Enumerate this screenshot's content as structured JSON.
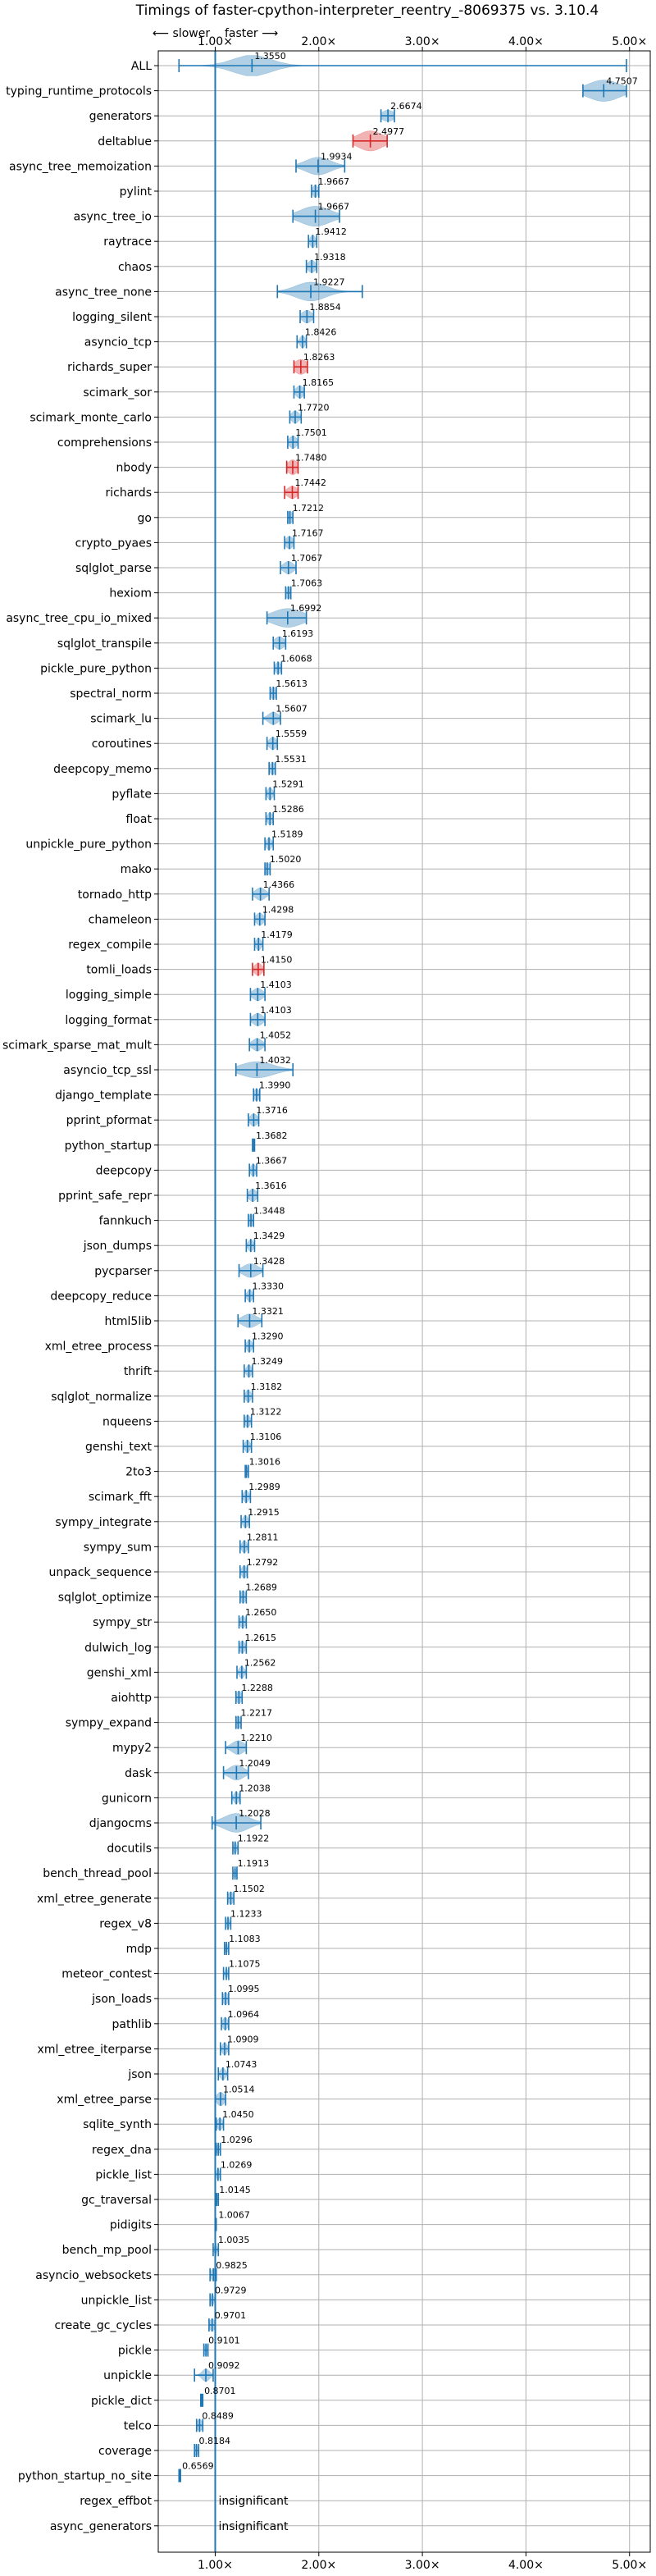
{
  "chart_data": {
    "type": "violin",
    "title": "Timings of faster-cpython-interpreter_reentry_-8069375 vs. 3.10.4",
    "axis_annotation": {
      "slower": "⟵ slower",
      "faster": "faster ⟶"
    },
    "x_ticks": [
      {
        "value": 1,
        "label": "1.00×"
      },
      {
        "value": 2,
        "label": "2.00×"
      },
      {
        "value": 3,
        "label": "3.00×"
      },
      {
        "value": 4,
        "label": "4.00×"
      },
      {
        "value": 5,
        "label": "5.00×"
      }
    ],
    "xlim": [
      0.45,
      5.2
    ],
    "reference_line": 1.0,
    "grid": true,
    "colors": {
      "violin": "#1f77b4",
      "highlight": "#d62728",
      "grid": "#b0b0b0"
    },
    "benchmarks": [
      {
        "name": "ALL",
        "value": 1.355,
        "label": "1.3550",
        "min": 0.65,
        "max": 4.97,
        "spread": 0.15,
        "width": 0.85,
        "style": "all"
      },
      {
        "name": "typing_runtime_protocols",
        "value": 4.7507,
        "label": "4.7507",
        "min": 4.55,
        "max": 4.97,
        "spread": 0.13,
        "width": 0.85
      },
      {
        "name": "generators",
        "value": 2.6674,
        "label": "2.6674",
        "min": 2.6,
        "max": 2.73,
        "spread": 0.05,
        "width": 0.45
      },
      {
        "name": "deltablue",
        "value": 2.4977,
        "label": "2.4977",
        "min": 2.33,
        "max": 2.66,
        "spread": 0.1,
        "width": 0.8,
        "color": "red"
      },
      {
        "name": "async_tree_memoization",
        "value": 1.9934,
        "label": "1.9934",
        "min": 1.78,
        "max": 2.25,
        "spread": 0.1,
        "width": 0.7
      },
      {
        "name": "pylint",
        "value": 1.9667,
        "label": "1.9667",
        "min": 1.93,
        "max": 2.0,
        "spread": 0.02,
        "width": 0.5
      },
      {
        "name": "async_tree_io",
        "value": 1.9667,
        "label": "1.9667",
        "min": 1.75,
        "max": 2.2,
        "spread": 0.12,
        "width": 0.8
      },
      {
        "name": "raytrace",
        "value": 1.9412,
        "label": "1.9412",
        "min": 1.9,
        "max": 1.98,
        "spread": 0.02,
        "width": 0.5
      },
      {
        "name": "chaos",
        "value": 1.9318,
        "label": "1.9318",
        "min": 1.88,
        "max": 1.98,
        "spread": 0.03,
        "width": 0.5
      },
      {
        "name": "async_tree_none",
        "value": 1.9227,
        "label": "1.9227",
        "min": 1.6,
        "max": 2.42,
        "spread": 0.12,
        "width": 0.75
      },
      {
        "name": "logging_silent",
        "value": 1.8854,
        "label": "1.8854",
        "min": 1.82,
        "max": 1.95,
        "spread": 0.04,
        "width": 0.5
      },
      {
        "name": "asyncio_tcp",
        "value": 1.8426,
        "label": "1.8426",
        "min": 1.79,
        "max": 1.88,
        "spread": 0.02,
        "width": 0.5
      },
      {
        "name": "richards_super",
        "value": 1.8263,
        "label": "1.8263",
        "min": 1.76,
        "max": 1.89,
        "spread": 0.05,
        "width": 0.6,
        "color": "red"
      },
      {
        "name": "scimark_sor",
        "value": 1.8165,
        "label": "1.8165",
        "min": 1.76,
        "max": 1.86,
        "spread": 0.03,
        "width": 0.5
      },
      {
        "name": "scimark_monte_carlo",
        "value": 1.772,
        "label": "1.7720",
        "min": 1.72,
        "max": 1.83,
        "spread": 0.03,
        "width": 0.5
      },
      {
        "name": "comprehensions",
        "value": 1.7501,
        "label": "1.7501",
        "min": 1.7,
        "max": 1.8,
        "spread": 0.03,
        "width": 0.5
      },
      {
        "name": "nbody",
        "value": 1.748,
        "label": "1.7480",
        "min": 1.69,
        "max": 1.8,
        "spread": 0.04,
        "width": 0.6,
        "color": "red"
      },
      {
        "name": "richards",
        "value": 1.7442,
        "label": "1.7442",
        "min": 1.67,
        "max": 1.8,
        "spread": 0.04,
        "width": 0.5,
        "color": "red"
      },
      {
        "name": "go",
        "value": 1.7212,
        "label": "1.7212",
        "min": 1.7,
        "max": 1.75,
        "spread": 0.02,
        "width": 0.5
      },
      {
        "name": "crypto_pyaes",
        "value": 1.7167,
        "label": "1.7167",
        "min": 1.67,
        "max": 1.76,
        "spread": 0.03,
        "width": 0.5
      },
      {
        "name": "sqlglot_parse",
        "value": 1.7067,
        "label": "1.7067",
        "min": 1.63,
        "max": 1.78,
        "spread": 0.04,
        "width": 0.5
      },
      {
        "name": "hexiom",
        "value": 1.7063,
        "label": "1.7063",
        "min": 1.68,
        "max": 1.73,
        "spread": 0.02,
        "width": 0.5
      },
      {
        "name": "async_tree_cpu_io_mixed",
        "value": 1.6992,
        "label": "1.6992",
        "min": 1.5,
        "max": 1.88,
        "spread": 0.12,
        "width": 0.75
      },
      {
        "name": "sqlglot_transpile",
        "value": 1.6193,
        "label": "1.6193",
        "min": 1.56,
        "max": 1.68,
        "spread": 0.04,
        "width": 0.5
      },
      {
        "name": "pickle_pure_python",
        "value": 1.6068,
        "label": "1.6068",
        "min": 1.57,
        "max": 1.64,
        "spread": 0.02,
        "width": 0.5
      },
      {
        "name": "spectral_norm",
        "value": 1.5613,
        "label": "1.5613",
        "min": 1.53,
        "max": 1.59,
        "spread": 0.02,
        "width": 0.5
      },
      {
        "name": "scimark_lu",
        "value": 1.5607,
        "label": "1.5607",
        "min": 1.46,
        "max": 1.63,
        "spread": 0.04,
        "width": 0.5
      },
      {
        "name": "coroutines",
        "value": 1.5559,
        "label": "1.5559",
        "min": 1.5,
        "max": 1.6,
        "spread": 0.03,
        "width": 0.5
      },
      {
        "name": "deepcopy_memo",
        "value": 1.5531,
        "label": "1.5531",
        "min": 1.52,
        "max": 1.58,
        "spread": 0.02,
        "width": 0.5
      },
      {
        "name": "pyflate",
        "value": 1.5291,
        "label": "1.5291",
        "min": 1.49,
        "max": 1.57,
        "spread": 0.02,
        "width": 0.5
      },
      {
        "name": "float",
        "value": 1.5286,
        "label": "1.5286",
        "min": 1.49,
        "max": 1.56,
        "spread": 0.02,
        "width": 0.5
      },
      {
        "name": "unpickle_pure_python",
        "value": 1.5189,
        "label": "1.5189",
        "min": 1.48,
        "max": 1.56,
        "spread": 0.02,
        "width": 0.5
      },
      {
        "name": "mako",
        "value": 1.502,
        "label": "1.5020",
        "min": 1.48,
        "max": 1.53,
        "spread": 0.02,
        "width": 0.5
      },
      {
        "name": "tornado_http",
        "value": 1.4366,
        "label": "1.4366",
        "min": 1.36,
        "max": 1.52,
        "spread": 0.04,
        "width": 0.5
      },
      {
        "name": "chameleon",
        "value": 1.4298,
        "label": "1.4298",
        "min": 1.38,
        "max": 1.48,
        "spread": 0.03,
        "width": 0.5
      },
      {
        "name": "regex_compile",
        "value": 1.4179,
        "label": "1.4179",
        "min": 1.38,
        "max": 1.46,
        "spread": 0.02,
        "width": 0.5
      },
      {
        "name": "tomli_loads",
        "value": 1.415,
        "label": "1.4150",
        "min": 1.36,
        "max": 1.47,
        "spread": 0.03,
        "width": 0.5,
        "color": "red"
      },
      {
        "name": "logging_simple",
        "value": 1.4103,
        "label": "1.4103",
        "min": 1.34,
        "max": 1.48,
        "spread": 0.04,
        "width": 0.5
      },
      {
        "name": "logging_format",
        "value": 1.4103,
        "label": "1.4103",
        "min": 1.34,
        "max": 1.48,
        "spread": 0.04,
        "width": 0.5
      },
      {
        "name": "scimark_sparse_mat_mult",
        "value": 1.4052,
        "label": "1.4052",
        "min": 1.33,
        "max": 1.48,
        "spread": 0.04,
        "width": 0.5
      },
      {
        "name": "asyncio_tcp_ssl",
        "value": 1.4032,
        "label": "1.4032",
        "min": 1.2,
        "max": 1.75,
        "spread": 0.13,
        "width": 0.65
      },
      {
        "name": "django_template",
        "value": 1.399,
        "label": "1.3990",
        "min": 1.37,
        "max": 1.43,
        "spread": 0.02,
        "width": 0.5
      },
      {
        "name": "pprint_pformat",
        "value": 1.3716,
        "label": "1.3716",
        "min": 1.32,
        "max": 1.42,
        "spread": 0.03,
        "width": 0.5
      },
      {
        "name": "python_startup",
        "value": 1.3682,
        "label": "1.3682",
        "min": 1.36,
        "max": 1.38,
        "spread": 0.01,
        "width": 0.4
      },
      {
        "name": "deepcopy",
        "value": 1.3667,
        "label": "1.3667",
        "min": 1.33,
        "max": 1.4,
        "spread": 0.02,
        "width": 0.5
      },
      {
        "name": "pprint_safe_repr",
        "value": 1.3616,
        "label": "1.3616",
        "min": 1.31,
        "max": 1.41,
        "spread": 0.03,
        "width": 0.5
      },
      {
        "name": "fannkuch",
        "value": 1.3448,
        "label": "1.3448",
        "min": 1.32,
        "max": 1.37,
        "spread": 0.02,
        "width": 0.5
      },
      {
        "name": "json_dumps",
        "value": 1.3429,
        "label": "1.3429",
        "min": 1.3,
        "max": 1.38,
        "spread": 0.02,
        "width": 0.5
      },
      {
        "name": "pycparser",
        "value": 1.3428,
        "label": "1.3428",
        "min": 1.23,
        "max": 1.46,
        "spread": 0.06,
        "width": 0.55
      },
      {
        "name": "deepcopy_reduce",
        "value": 1.333,
        "label": "1.3330",
        "min": 1.29,
        "max": 1.37,
        "spread": 0.02,
        "width": 0.5
      },
      {
        "name": "html5lib",
        "value": 1.3321,
        "label": "1.3321",
        "min": 1.22,
        "max": 1.45,
        "spread": 0.06,
        "width": 0.55
      },
      {
        "name": "xml_etree_process",
        "value": 1.329,
        "label": "1.3290",
        "min": 1.29,
        "max": 1.37,
        "spread": 0.02,
        "width": 0.5
      },
      {
        "name": "thrift",
        "value": 1.3249,
        "label": "1.3249",
        "min": 1.28,
        "max": 1.36,
        "spread": 0.02,
        "width": 0.5
      },
      {
        "name": "sqlglot_normalize",
        "value": 1.3182,
        "label": "1.3182",
        "min": 1.28,
        "max": 1.36,
        "spread": 0.02,
        "width": 0.5
      },
      {
        "name": "nqueens",
        "value": 1.3122,
        "label": "1.3122",
        "min": 1.28,
        "max": 1.35,
        "spread": 0.02,
        "width": 0.5
      },
      {
        "name": "genshi_text",
        "value": 1.3106,
        "label": "1.3106",
        "min": 1.27,
        "max": 1.35,
        "spread": 0.02,
        "width": 0.5
      },
      {
        "name": "2to3",
        "value": 1.3016,
        "label": "1.3016",
        "min": 1.29,
        "max": 1.32,
        "spread": 0.01,
        "width": 0.4
      },
      {
        "name": "scimark_fft",
        "value": 1.2989,
        "label": "1.2989",
        "min": 1.26,
        "max": 1.34,
        "spread": 0.02,
        "width": 0.5
      },
      {
        "name": "sympy_integrate",
        "value": 1.2915,
        "label": "1.2915",
        "min": 1.25,
        "max": 1.33,
        "spread": 0.02,
        "width": 0.5
      },
      {
        "name": "sympy_sum",
        "value": 1.2811,
        "label": "1.2811",
        "min": 1.24,
        "max": 1.32,
        "spread": 0.02,
        "width": 0.5
      },
      {
        "name": "unpack_sequence",
        "value": 1.2792,
        "label": "1.2792",
        "min": 1.24,
        "max": 1.31,
        "spread": 0.02,
        "width": 0.5
      },
      {
        "name": "sqlglot_optimize",
        "value": 1.2689,
        "label": "1.2689",
        "min": 1.24,
        "max": 1.3,
        "spread": 0.02,
        "width": 0.5
      },
      {
        "name": "sympy_str",
        "value": 1.265,
        "label": "1.2650",
        "min": 1.23,
        "max": 1.3,
        "spread": 0.02,
        "width": 0.5
      },
      {
        "name": "dulwich_log",
        "value": 1.2615,
        "label": "1.2615",
        "min": 1.23,
        "max": 1.3,
        "spread": 0.02,
        "width": 0.5
      },
      {
        "name": "genshi_xml",
        "value": 1.2562,
        "label": "1.2562",
        "min": 1.21,
        "max": 1.3,
        "spread": 0.02,
        "width": 0.5
      },
      {
        "name": "aiohttp",
        "value": 1.2288,
        "label": "1.2288",
        "min": 1.2,
        "max": 1.26,
        "spread": 0.02,
        "width": 0.5
      },
      {
        "name": "sympy_expand",
        "value": 1.2217,
        "label": "1.2217",
        "min": 1.2,
        "max": 1.25,
        "spread": 0.02,
        "width": 0.5
      },
      {
        "name": "mypy2",
        "value": 1.221,
        "label": "1.2210",
        "min": 1.1,
        "max": 1.3,
        "spread": 0.05,
        "width": 0.55
      },
      {
        "name": "dask",
        "value": 1.2049,
        "label": "1.2049",
        "min": 1.08,
        "max": 1.32,
        "spread": 0.06,
        "width": 0.6
      },
      {
        "name": "gunicorn",
        "value": 1.2038,
        "label": "1.2038",
        "min": 1.16,
        "max": 1.24,
        "spread": 0.02,
        "width": 0.5
      },
      {
        "name": "djangocms",
        "value": 1.2028,
        "label": "1.2028",
        "min": 0.97,
        "max": 1.44,
        "spread": 0.1,
        "width": 0.75
      },
      {
        "name": "docutils",
        "value": 1.1922,
        "label": "1.1922",
        "min": 1.17,
        "max": 1.22,
        "spread": 0.01,
        "width": 0.5
      },
      {
        "name": "bench_thread_pool",
        "value": 1.1913,
        "label": "1.1913",
        "min": 1.17,
        "max": 1.21,
        "spread": 0.01,
        "width": 0.4
      },
      {
        "name": "xml_etree_generate",
        "value": 1.1502,
        "label": "1.1502",
        "min": 1.12,
        "max": 1.18,
        "spread": 0.02,
        "width": 0.5
      },
      {
        "name": "regex_v8",
        "value": 1.1233,
        "label": "1.1233",
        "min": 1.1,
        "max": 1.15,
        "spread": 0.01,
        "width": 0.5
      },
      {
        "name": "mdp",
        "value": 1.1083,
        "label": "1.1083",
        "min": 1.09,
        "max": 1.13,
        "spread": 0.01,
        "width": 0.4
      },
      {
        "name": "meteor_contest",
        "value": 1.1075,
        "label": "1.1075",
        "min": 1.08,
        "max": 1.13,
        "spread": 0.01,
        "width": 0.4
      },
      {
        "name": "json_loads",
        "value": 1.0995,
        "label": "1.0995",
        "min": 1.07,
        "max": 1.13,
        "spread": 0.02,
        "width": 0.5
      },
      {
        "name": "pathlib",
        "value": 1.0964,
        "label": "1.0964",
        "min": 1.06,
        "max": 1.13,
        "spread": 0.02,
        "width": 0.5
      },
      {
        "name": "xml_etree_iterparse",
        "value": 1.0909,
        "label": "1.0909",
        "min": 1.05,
        "max": 1.13,
        "spread": 0.02,
        "width": 0.5
      },
      {
        "name": "json",
        "value": 1.0743,
        "label": "1.0743",
        "min": 1.03,
        "max": 1.12,
        "spread": 0.02,
        "width": 0.5
      },
      {
        "name": "xml_etree_parse",
        "value": 1.0514,
        "label": "1.0514",
        "min": 1.0,
        "max": 1.1,
        "spread": 0.03,
        "width": 0.55
      },
      {
        "name": "sqlite_synth",
        "value": 1.045,
        "label": "1.0450",
        "min": 1.01,
        "max": 1.08,
        "spread": 0.02,
        "width": 0.5
      },
      {
        "name": "regex_dna",
        "value": 1.0296,
        "label": "1.0296",
        "min": 1.01,
        "max": 1.05,
        "spread": 0.01,
        "width": 0.4
      },
      {
        "name": "pickle_list",
        "value": 1.0269,
        "label": "1.0269",
        "min": 1.0,
        "max": 1.05,
        "spread": 0.01,
        "width": 0.5
      },
      {
        "name": "gc_traversal",
        "value": 1.0145,
        "label": "1.0145",
        "min": 1.0,
        "max": 1.03,
        "spread": 0.01,
        "width": 0.4
      },
      {
        "name": "pidigits",
        "value": 1.0067,
        "label": "1.0067",
        "min": 1.0,
        "max": 1.01,
        "spread": 0.005,
        "width": 0.3
      },
      {
        "name": "bench_mp_pool",
        "value": 1.0035,
        "label": "1.0035",
        "min": 0.98,
        "max": 1.03,
        "spread": 0.01,
        "width": 0.4
      },
      {
        "name": "asyncio_websockets",
        "value": 0.9825,
        "label": "0.9825",
        "min": 0.95,
        "max": 1.01,
        "spread": 0.02,
        "width": 0.5
      },
      {
        "name": "unpickle_list",
        "value": 0.9729,
        "label": "0.9729",
        "min": 0.95,
        "max": 1.0,
        "spread": 0.01,
        "width": 0.5
      },
      {
        "name": "create_gc_cycles",
        "value": 0.9701,
        "label": "0.9701",
        "min": 0.94,
        "max": 1.0,
        "spread": 0.02,
        "width": 0.5
      },
      {
        "name": "pickle",
        "value": 0.9101,
        "label": "0.9101",
        "min": 0.89,
        "max": 0.93,
        "spread": 0.01,
        "width": 0.5
      },
      {
        "name": "unpickle",
        "value": 0.9092,
        "label": "0.9092",
        "min": 0.8,
        "max": 0.98,
        "spread": 0.03,
        "width": 0.5
      },
      {
        "name": "pickle_dict",
        "value": 0.8701,
        "label": "0.8701",
        "min": 0.86,
        "max": 0.88,
        "spread": 0.005,
        "width": 0.4
      },
      {
        "name": "telco",
        "value": 0.8489,
        "label": "0.8489",
        "min": 0.82,
        "max": 0.88,
        "spread": 0.02,
        "width": 0.5
      },
      {
        "name": "coverage",
        "value": 0.8184,
        "label": "0.8184",
        "min": 0.8,
        "max": 0.84,
        "spread": 0.01,
        "width": 0.5
      },
      {
        "name": "python_startup_no_site",
        "value": 0.6569,
        "label": "0.6569",
        "min": 0.65,
        "max": 0.665,
        "spread": 0.005,
        "width": 0.3
      },
      {
        "name": "regex_effbot",
        "value": null,
        "label": "insignificant"
      },
      {
        "name": "async_generators",
        "value": null,
        "label": "insignificant"
      }
    ]
  }
}
